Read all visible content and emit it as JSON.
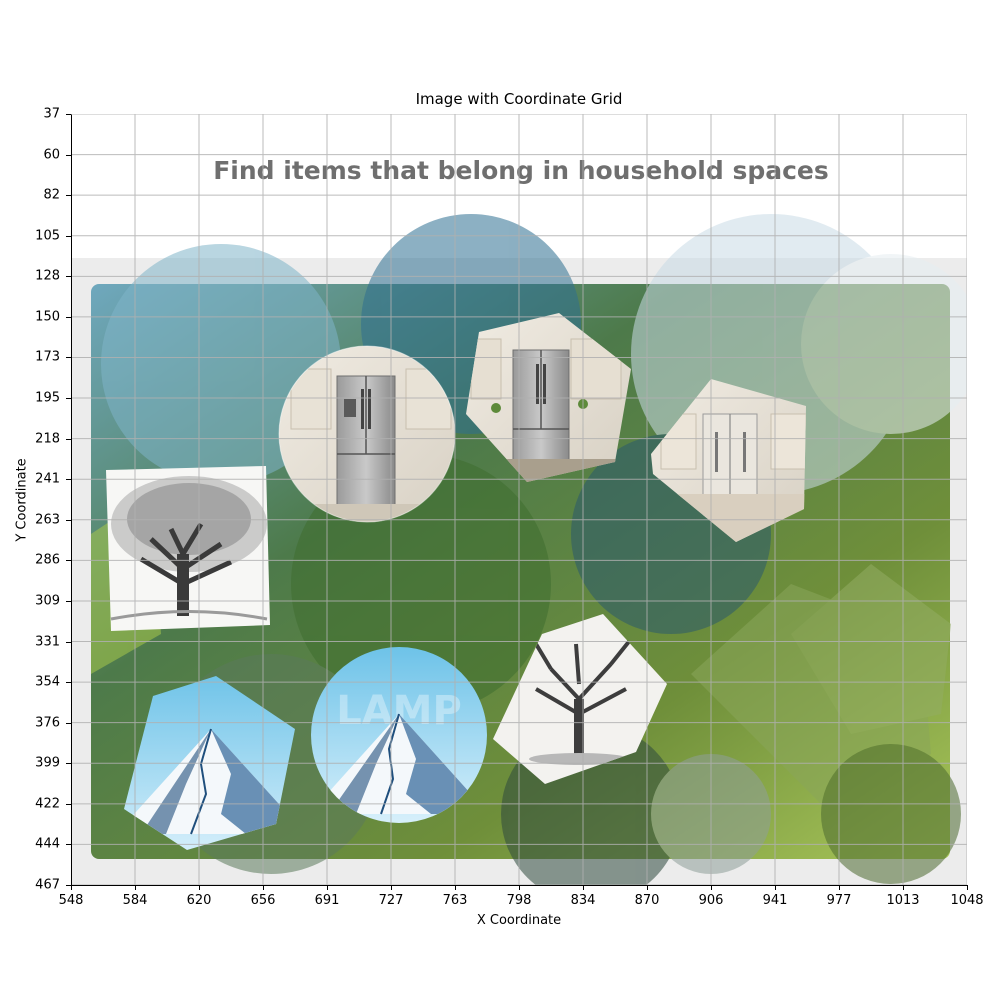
{
  "plot": {
    "title": "Image with Coordinate Grid",
    "xlabel": "X Coordinate",
    "ylabel": "Y Coordinate",
    "x_ticks": [
      "548",
      "584",
      "620",
      "656",
      "691",
      "727",
      "763",
      "798",
      "834",
      "870",
      "906",
      "941",
      "977",
      "1013",
      "1048"
    ],
    "y_ticks": [
      "37",
      "60",
      "82",
      "105",
      "128",
      "150",
      "173",
      "195",
      "218",
      "241",
      "263",
      "286",
      "309",
      "331",
      "354",
      "376",
      "399",
      "422",
      "444",
      "467"
    ]
  },
  "captcha": {
    "instruction": "Find items that belong in household spaces",
    "tiles": [
      {
        "name": "refrigerator-circle-tile",
        "subject": "refrigerator",
        "shape": "circle"
      },
      {
        "name": "refrigerator-hexagon-tile",
        "subject": "refrigerator",
        "shape": "hexagon"
      },
      {
        "name": "refrigerator-hexagon-right-tile",
        "subject": "refrigerator",
        "shape": "hexagon"
      },
      {
        "name": "tree-square-tile",
        "subject": "tree",
        "shape": "square"
      },
      {
        "name": "tree-hexagon-tile",
        "subject": "tree",
        "shape": "hexagon"
      },
      {
        "name": "mountain-hexagon-tile",
        "subject": "mountain",
        "shape": "hexagon"
      },
      {
        "name": "mountain-circle-tile",
        "subject": "mountain",
        "shape": "circle"
      }
    ],
    "watermark_text": "LAMP"
  },
  "colors": {
    "panel_bg": "#ececec",
    "grid": "#b0b0b0",
    "instruction_text": "#6f6f6f"
  }
}
